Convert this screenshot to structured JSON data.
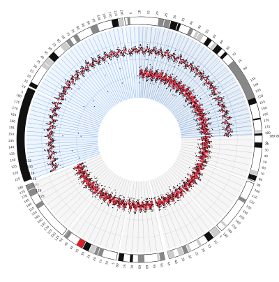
{
  "figure": {
    "description_colors": {
      "background": "#ffffff",
      "gridline_highlight": "#4f8fe8",
      "gridline_gray": "#b4b4b4",
      "band_fill_highlight": "#cfe1f8",
      "band_fill_gray": "#e6e6e6",
      "signal_red": "#e8253a",
      "points_black": "#111111",
      "ideogram_dark": "#111111",
      "ideogram_mid": "#888888",
      "ideogram_light": "#cccccc",
      "centromere_red": "#d9202a"
    }
  },
  "chart_data": {
    "type": "circular-genome-plot",
    "chromosomes": [
      {
        "id": "1",
        "start_deg": -90,
        "end_deg": -4,
        "highlight": false,
        "left_tick_labels": [
          "5",
          "10",
          "15",
          "20",
          "25",
          "30",
          "35",
          "40",
          "45",
          "50",
          "55",
          "60",
          "65",
          "70",
          "75",
          "80"
        ],
        "right_tick_labels": [
          "40",
          "50",
          "60",
          "70",
          "80",
          "90",
          "100",
          "110",
          "120",
          "130",
          "140",
          "150",
          "160",
          "170",
          "180",
          "190"
        ]
      },
      {
        "id": "2",
        "start_deg": -3,
        "end_deg": 20,
        "highlight": false
      },
      {
        "id": "3",
        "start_deg": 21,
        "end_deg": 48,
        "highlight": false
      },
      {
        "id": "4",
        "start_deg": 49,
        "end_deg": 76,
        "highlight": false
      },
      {
        "id": "5",
        "start_deg": 78,
        "end_deg": 100,
        "highlight": false
      },
      {
        "id": "6",
        "start_deg": 101,
        "end_deg": 128,
        "highlight": false
      },
      {
        "id": "7",
        "start_deg": 129,
        "end_deg": 158,
        "highlight": false
      },
      {
        "id": "8",
        "start_deg": 160,
        "end_deg": 205,
        "highlight": true
      },
      {
        "id": "9",
        "start_deg": 206,
        "end_deg": 262,
        "highlight": true
      },
      {
        "id": "10",
        "start_deg": 263,
        "end_deg": 330,
        "highlight": true
      },
      {
        "id": "11",
        "start_deg": 331,
        "end_deg": 358,
        "highlight": true
      }
    ],
    "visible_labels": {
      "top_left_ticks": [
        "5",
        "10",
        "15",
        "20",
        "25",
        "30",
        "35",
        "40",
        "45",
        "50",
        "55",
        "60",
        "65",
        "70",
        "75",
        "80",
        "85",
        "90",
        "95",
        "100",
        "105",
        "110",
        "115",
        "120"
      ],
      "left_ticks": [
        "115",
        "120",
        "125",
        "130",
        "135",
        "140",
        "145",
        "150",
        "155",
        "160",
        "165",
        "170",
        "175",
        "180"
      ],
      "right_ticks_upper": [
        "135",
        "140",
        "145",
        "150",
        "155",
        "160",
        "165",
        "170",
        "175",
        "180"
      ],
      "right_ticks_lower": [
        "20",
        "30",
        "40",
        "50",
        "60",
        "70",
        "80",
        "90",
        "100",
        "110",
        "120",
        "130",
        "140",
        "150",
        "160",
        "170",
        "180",
        "190"
      ],
      "bottom_ticks": [
        "5",
        "10",
        "15",
        "20",
        "25",
        "30",
        "35",
        "40",
        "45",
        "50",
        "55",
        "60",
        "65",
        "70",
        "75",
        "80"
      ],
      "left_cluster": [
        "125",
        "126",
        "127",
        "128",
        "129",
        "130",
        "135"
      ],
      "misc": [
        "189.80",
        "0"
      ]
    }
  }
}
